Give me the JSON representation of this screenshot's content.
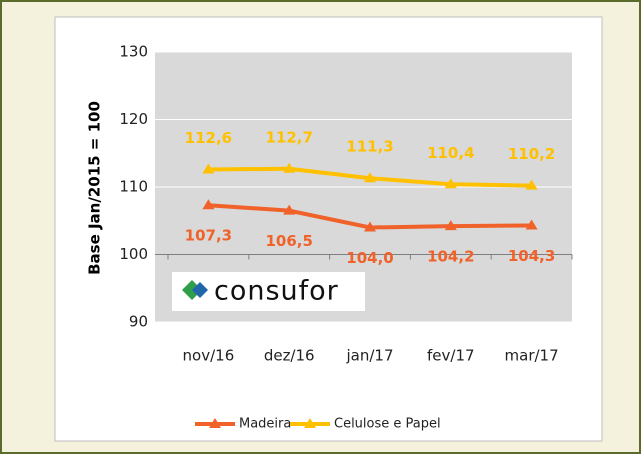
{
  "chart_data": {
    "type": "line",
    "y_label": "Base Jan/2015 = 100",
    "watermark": "consufor",
    "categories": [
      "nov/16",
      "dez/16",
      "jan/17",
      "fev/17",
      "mar/17"
    ],
    "series": [
      {
        "name": "Madeira",
        "color": "#f0622a",
        "values": [
          107.3,
          106.5,
          104.0,
          104.2,
          104.3
        ],
        "value_labels": [
          "107,3",
          "106,5",
          "104,0",
          "104,2",
          "104,3"
        ]
      },
      {
        "name": "Celulose e Papel",
        "color": "#ffc000",
        "values": [
          112.6,
          112.7,
          111.3,
          110.4,
          110.2
        ],
        "value_labels": [
          "112,6",
          "112,7",
          "111,3",
          "110,4",
          "110,2"
        ]
      }
    ],
    "ylim": [
      90,
      130
    ],
    "yticks": [
      90,
      100,
      110,
      120,
      130
    ],
    "grid": true,
    "legend": "bottom"
  }
}
